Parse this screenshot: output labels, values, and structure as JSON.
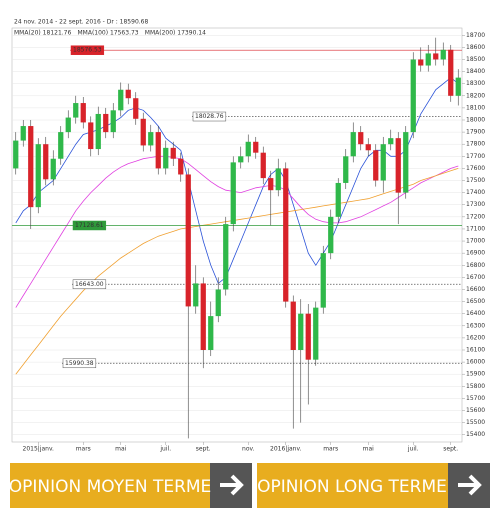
{
  "chart_data": {
    "type": "candlestick",
    "subtitle": "24 nov. 2014 - 22 sept. 2016 - Dr : 18590.68",
    "categories": [
      null,
      null,
      null,
      "2015|janv.",
      null,
      null,
      null,
      null,
      null,
      "mars",
      null,
      null,
      null,
      null,
      "mai",
      null,
      null,
      null,
      null,
      null,
      "juil.",
      null,
      null,
      null,
      null,
      "sept.",
      null,
      null,
      null,
      null,
      null,
      "nov.",
      null,
      null,
      null,
      null,
      "2016|janv.",
      null,
      null,
      null,
      null,
      null,
      "mars",
      null,
      null,
      null,
      null,
      "mai",
      null,
      null,
      null,
      null,
      null,
      "juil.",
      null,
      null,
      null,
      null,
      "sept.",
      null
    ],
    "open": [
      17600,
      17830,
      17950,
      17280,
      17800,
      17510,
      17680,
      17900,
      18020,
      18140,
      17980,
      17760,
      18050,
      17900,
      18080,
      18250,
      18180,
      18010,
      17790,
      17900,
      17600,
      17770,
      17680,
      17550,
      16460,
      16650,
      16100,
      16380,
      16600,
      17140,
      17650,
      17700,
      17820,
      17730,
      17520,
      17420,
      17600,
      16500,
      16100,
      16400,
      16020,
      16450,
      16900,
      17200,
      17480,
      17700,
      17900,
      17800,
      17750,
      17500,
      17800,
      17850,
      17400,
      17900,
      18500,
      18450,
      18550,
      18500,
      18580,
      18200
    ],
    "high": [
      17900,
      18000,
      18000,
      17850,
      17860,
      17750,
      17950,
      18080,
      18200,
      18190,
      18030,
      18110,
      18100,
      18140,
      18310,
      18300,
      18230,
      18060,
      17960,
      17950,
      17830,
      17820,
      17730,
      17600,
      16800,
      16700,
      16500,
      16700,
      17200,
      17700,
      17780,
      17880,
      17860,
      17780,
      17580,
      17680,
      17650,
      16550,
      16520,
      16480,
      16500,
      16960,
      17260,
      17520,
      17760,
      17980,
      17950,
      17850,
      17800,
      17860,
      17920,
      17900,
      17950,
      18560,
      18600,
      18620,
      18680,
      18640,
      18620,
      18420
    ],
    "low": [
      17550,
      17780,
      17100,
      17230,
      17460,
      17460,
      17630,
      17850,
      17970,
      17930,
      17700,
      17710,
      17850,
      17850,
      18030,
      18130,
      17960,
      17740,
      17740,
      17550,
      17550,
      17620,
      17490,
      15370,
      16400,
      15950,
      16050,
      16330,
      16550,
      17080,
      17600,
      17650,
      17680,
      17470,
      17130,
      17370,
      16450,
      15450,
      15500,
      15650,
      15970,
      16400,
      16850,
      17150,
      17430,
      17650,
      17750,
      17700,
      17450,
      17400,
      17750,
      17140,
      17350,
      17850,
      18400,
      18400,
      18450,
      18450,
      18150,
      18120
    ],
    "close": [
      17830,
      17950,
      17280,
      17800,
      17510,
      17680,
      17900,
      18020,
      18140,
      17980,
      17760,
      18050,
      17900,
      18080,
      18250,
      18180,
      18010,
      17790,
      17900,
      17600,
      17770,
      17680,
      17550,
      16460,
      16650,
      16100,
      16380,
      16600,
      17140,
      17650,
      17700,
      17820,
      17730,
      17520,
      17420,
      17600,
      16500,
      16100,
      16400,
      16020,
      16450,
      16900,
      17200,
      17480,
      17700,
      17900,
      17800,
      17750,
      17500,
      17800,
      17850,
      17400,
      17900,
      18500,
      18450,
      18550,
      18500,
      18580,
      18200,
      18350
    ],
    "up_color": "#2fb84a",
    "down_color": "#d8232a",
    "series": [
      {
        "name": "MMA(20) 18121.76",
        "color": "#2a52d8",
        "values": [
          17150,
          17250,
          17300,
          17400,
          17450,
          17500,
          17600,
          17700,
          17800,
          17880,
          17900,
          17920,
          17950,
          17980,
          18020,
          18080,
          18100,
          18080,
          18020,
          17950,
          17850,
          17800,
          17750,
          17500,
          17250,
          17000,
          16800,
          16650,
          16700,
          16850,
          17000,
          17150,
          17300,
          17450,
          17550,
          17600,
          17500,
          17300,
          17100,
          16900,
          16800,
          16900,
          17000,
          17150,
          17300,
          17450,
          17600,
          17700,
          17750,
          17750,
          17700,
          17700,
          17750,
          17900,
          18050,
          18150,
          18250,
          18300,
          18350,
          18300
        ]
      },
      {
        "name": "MMA(100) 17563.73",
        "color": "#e040e0",
        "values": [
          16450,
          16550,
          16650,
          16750,
          16850,
          16950,
          17050,
          17150,
          17250,
          17330,
          17400,
          17460,
          17520,
          17570,
          17610,
          17640,
          17660,
          17680,
          17690,
          17700,
          17700,
          17690,
          17680,
          17640,
          17590,
          17540,
          17490,
          17450,
          17420,
          17410,
          17400,
          17420,
          17440,
          17450,
          17460,
          17450,
          17420,
          17350,
          17280,
          17220,
          17180,
          17160,
          17150,
          17150,
          17160,
          17180,
          17200,
          17230,
          17260,
          17290,
          17320,
          17360,
          17400,
          17440,
          17480,
          17510,
          17540,
          17570,
          17600,
          17620
        ]
      },
      {
        "name": "MMA(200) 17390.14",
        "color": "#f0a030",
        "values": [
          15900,
          15980,
          16060,
          16140,
          16220,
          16300,
          16380,
          16450,
          16520,
          16590,
          16650,
          16710,
          16760,
          16810,
          16860,
          16900,
          16940,
          16980,
          17010,
          17040,
          17060,
          17080,
          17100,
          17110,
          17120,
          17130,
          17140,
          17150,
          17160,
          17170,
          17180,
          17190,
          17200,
          17210,
          17220,
          17230,
          17240,
          17250,
          17260,
          17270,
          17280,
          17290,
          17300,
          17310,
          17320,
          17330,
          17340,
          17350,
          17370,
          17390,
          17410,
          17430,
          17450,
          17470,
          17500,
          17520,
          17540,
          17560,
          17580,
          17600
        ]
      }
    ],
    "levels": [
      {
        "value": 18576.53,
        "color": "#d8232a"
      },
      {
        "value": 18028.76,
        "color": "#555555"
      },
      {
        "value": 17128.61,
        "color": "#2f9a3a"
      },
      {
        "value": 16643,
        "label": "16643.00",
        "color": "#555555"
      },
      {
        "value": 15990.38,
        "color": "#555555"
      }
    ],
    "ylim": [
      15340,
      18760
    ],
    "yticks": [
      15400,
      15500,
      15600,
      15700,
      15800,
      15900,
      16000,
      16100,
      16200,
      16300,
      16400,
      16500,
      16600,
      16700,
      16800,
      16900,
      17000,
      17100,
      17200,
      17300,
      17400,
      17500,
      17600,
      17700,
      17800,
      17900,
      18000,
      18100,
      18200,
      18300,
      18400,
      18500,
      18600,
      18700
    ],
    "grid": true
  },
  "buttons": [
    "OPINION MOYEN TERME",
    "OPINION LONG TERME"
  ]
}
